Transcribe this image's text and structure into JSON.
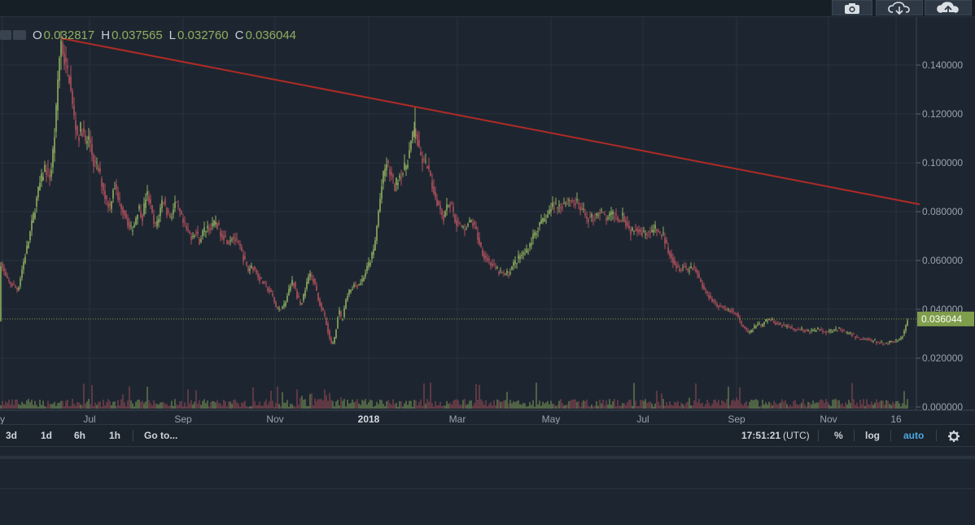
{
  "ohlc": {
    "o_label": "O",
    "o_value": "0.032817",
    "h_label": "H",
    "h_value": "0.037565",
    "l_label": "L",
    "l_value": "0.032760",
    "c_label": "C",
    "c_value": "0.036044"
  },
  "toolbar_top": {
    "camera_icon": "camera-icon",
    "download_icon": "cloud-download-icon",
    "upload_icon": "cloud-upload-icon"
  },
  "bottom_bar": {
    "ranges": [
      "3d",
      "1d",
      "6h",
      "1h"
    ],
    "goto_label": "Go to...",
    "time": "17:51:21",
    "timezone": "(UTC)",
    "percent_label": "%",
    "log_label": "log",
    "auto_label": "auto",
    "settings_icon": "gear-icon"
  },
  "colors": {
    "background": "#1d2630",
    "up": "#8fae5f",
    "down": "#b0505c",
    "trendline": "#b12a26",
    "grid": "#283340",
    "price_tag": "#7f9d4b"
  },
  "chart_data": {
    "type": "candlestick",
    "title": "",
    "y_axis_ticks": [
      "0.140000",
      "0.120000",
      "0.100000",
      "0.080000",
      "0.060000",
      "0.040000",
      "0.020000",
      "0.000000"
    ],
    "x_axis_ticks": [
      {
        "label": "y",
        "x": 3
      },
      {
        "label": "Jul",
        "x": 110
      },
      {
        "label": "Sep",
        "x": 225
      },
      {
        "label": "Nov",
        "x": 338
      },
      {
        "label": "2018",
        "x": 453,
        "bold": true
      },
      {
        "label": "Mar",
        "x": 562
      },
      {
        "label": "May",
        "x": 677
      },
      {
        "label": "Jul",
        "x": 790
      },
      {
        "label": "Sep",
        "x": 905
      },
      {
        "label": "Nov",
        "x": 1018
      },
      {
        "label": "16",
        "x": 1101
      }
    ],
    "last_price": "0.036044",
    "last_price_value": 0.036044,
    "y_range": [
      0.0,
      0.155
    ],
    "trendline": {
      "start": {
        "day": 75,
        "value": 0.151
      },
      "end": {
        "day": 1130,
        "value": 0.083
      }
    },
    "price_path": [
      [
        0,
        0.06
      ],
      [
        8,
        0.052
      ],
      [
        15,
        0.05
      ],
      [
        22,
        0.048
      ],
      [
        28,
        0.058
      ],
      [
        35,
        0.068
      ],
      [
        42,
        0.08
      ],
      [
        48,
        0.09
      ],
      [
        55,
        0.098
      ],
      [
        62,
        0.094
      ],
      [
        68,
        0.115
      ],
      [
        72,
        0.14
      ],
      [
        75,
        0.15
      ],
      [
        80,
        0.14
      ],
      [
        85,
        0.135
      ],
      [
        90,
        0.12
      ],
      [
        96,
        0.11
      ],
      [
        100,
        0.115
      ],
      [
        105,
        0.108
      ],
      [
        110,
        0.11
      ],
      [
        115,
        0.1
      ],
      [
        120,
        0.098
      ],
      [
        125,
        0.092
      ],
      [
        130,
        0.085
      ],
      [
        135,
        0.082
      ],
      [
        140,
        0.092
      ],
      [
        145,
        0.085
      ],
      [
        150,
        0.082
      ],
      [
        155,
        0.078
      ],
      [
        160,
        0.072
      ],
      [
        165,
        0.075
      ],
      [
        170,
        0.082
      ],
      [
        175,
        0.078
      ],
      [
        180,
        0.088
      ],
      [
        185,
        0.082
      ],
      [
        190,
        0.073
      ],
      [
        195,
        0.078
      ],
      [
        200,
        0.086
      ],
      [
        205,
        0.08
      ],
      [
        210,
        0.078
      ],
      [
        215,
        0.083
      ],
      [
        220,
        0.08
      ],
      [
        225,
        0.075
      ],
      [
        230,
        0.072
      ],
      [
        235,
        0.07
      ],
      [
        240,
        0.072
      ],
      [
        245,
        0.068
      ],
      [
        250,
        0.072
      ],
      [
        255,
        0.074
      ],
      [
        260,
        0.073
      ],
      [
        265,
        0.076
      ],
      [
        270,
        0.072
      ],
      [
        275,
        0.07
      ],
      [
        280,
        0.068
      ],
      [
        285,
        0.07
      ],
      [
        290,
        0.068
      ],
      [
        295,
        0.065
      ],
      [
        300,
        0.06
      ],
      [
        305,
        0.056
      ],
      [
        310,
        0.058
      ],
      [
        315,
        0.055
      ],
      [
        320,
        0.052
      ],
      [
        325,
        0.05
      ],
      [
        330,
        0.048
      ],
      [
        335,
        0.045
      ],
      [
        340,
        0.04
      ],
      [
        345,
        0.04
      ],
      [
        350,
        0.042
      ],
      [
        355,
        0.048
      ],
      [
        360,
        0.052
      ],
      [
        365,
        0.045
      ],
      [
        370,
        0.042
      ],
      [
        375,
        0.048
      ],
      [
        380,
        0.054
      ],
      [
        385,
        0.052
      ],
      [
        390,
        0.046
      ],
      [
        395,
        0.04
      ],
      [
        400,
        0.036
      ],
      [
        405,
        0.028
      ],
      [
        408,
        0.025
      ],
      [
        412,
        0.03
      ],
      [
        416,
        0.04
      ],
      [
        420,
        0.035
      ],
      [
        425,
        0.044
      ],
      [
        430,
        0.048
      ],
      [
        435,
        0.05
      ],
      [
        440,
        0.05
      ],
      [
        445,
        0.052
      ],
      [
        450,
        0.056
      ],
      [
        455,
        0.06
      ],
      [
        460,
        0.065
      ],
      [
        465,
        0.08
      ],
      [
        470,
        0.093
      ],
      [
        475,
        0.1
      ],
      [
        480,
        0.095
      ],
      [
        485,
        0.09
      ],
      [
        490,
        0.095
      ],
      [
        495,
        0.096
      ],
      [
        500,
        0.1
      ],
      [
        505,
        0.108
      ],
      [
        510,
        0.114
      ],
      [
        515,
        0.104
      ],
      [
        520,
        0.1
      ],
      [
        525,
        0.098
      ],
      [
        530,
        0.092
      ],
      [
        535,
        0.086
      ],
      [
        540,
        0.082
      ],
      [
        545,
        0.078
      ],
      [
        550,
        0.084
      ],
      [
        555,
        0.082
      ],
      [
        560,
        0.076
      ],
      [
        565,
        0.074
      ],
      [
        570,
        0.073
      ],
      [
        575,
        0.075
      ],
      [
        580,
        0.076
      ],
      [
        585,
        0.072
      ],
      [
        590,
        0.066
      ],
      [
        595,
        0.062
      ],
      [
        600,
        0.06
      ],
      [
        605,
        0.058
      ],
      [
        610,
        0.056
      ],
      [
        615,
        0.055
      ],
      [
        620,
        0.054
      ],
      [
        625,
        0.055
      ],
      [
        630,
        0.058
      ],
      [
        635,
        0.06
      ],
      [
        640,
        0.062
      ],
      [
        645,
        0.063
      ],
      [
        650,
        0.066
      ],
      [
        655,
        0.07
      ],
      [
        660,
        0.073
      ],
      [
        665,
        0.075
      ],
      [
        670,
        0.077
      ],
      [
        675,
        0.08
      ],
      [
        680,
        0.083
      ],
      [
        685,
        0.082
      ],
      [
        690,
        0.083
      ],
      [
        695,
        0.084
      ],
      [
        700,
        0.085
      ],
      [
        705,
        0.084
      ],
      [
        710,
        0.083
      ],
      [
        715,
        0.08
      ],
      [
        720,
        0.078
      ],
      [
        725,
        0.077
      ],
      [
        730,
        0.078
      ],
      [
        735,
        0.08
      ],
      [
        740,
        0.079
      ],
      [
        745,
        0.077
      ],
      [
        750,
        0.078
      ],
      [
        755,
        0.079
      ],
      [
        760,
        0.077
      ],
      [
        765,
        0.079
      ],
      [
        770,
        0.075
      ],
      [
        775,
        0.072
      ],
      [
        780,
        0.074
      ],
      [
        785,
        0.073
      ],
      [
        790,
        0.071
      ],
      [
        795,
        0.072
      ],
      [
        800,
        0.071
      ],
      [
        805,
        0.073
      ],
      [
        810,
        0.071
      ],
      [
        815,
        0.07
      ],
      [
        820,
        0.065
      ],
      [
        825,
        0.062
      ],
      [
        830,
        0.058
      ],
      [
        835,
        0.057
      ],
      [
        840,
        0.058
      ],
      [
        845,
        0.056
      ],
      [
        850,
        0.058
      ],
      [
        855,
        0.056
      ],
      [
        860,
        0.052
      ],
      [
        865,
        0.048
      ],
      [
        870,
        0.046
      ],
      [
        875,
        0.044
      ],
      [
        880,
        0.042
      ],
      [
        885,
        0.041
      ],
      [
        890,
        0.04
      ],
      [
        895,
        0.04
      ],
      [
        900,
        0.039
      ],
      [
        905,
        0.038
      ],
      [
        910,
        0.034
      ],
      [
        915,
        0.032
      ],
      [
        920,
        0.03
      ],
      [
        925,
        0.032
      ],
      [
        930,
        0.034
      ],
      [
        935,
        0.033
      ],
      [
        940,
        0.035
      ],
      [
        945,
        0.036
      ],
      [
        950,
        0.035
      ],
      [
        955,
        0.034
      ],
      [
        960,
        0.034
      ],
      [
        965,
        0.033
      ],
      [
        970,
        0.033
      ],
      [
        975,
        0.032
      ],
      [
        980,
        0.032
      ],
      [
        985,
        0.032
      ],
      [
        990,
        0.031
      ],
      [
        995,
        0.031
      ],
      [
        1000,
        0.031
      ],
      [
        1005,
        0.032
      ],
      [
        1010,
        0.031
      ],
      [
        1015,
        0.031
      ],
      [
        1020,
        0.031
      ],
      [
        1025,
        0.032
      ],
      [
        1030,
        0.032
      ],
      [
        1035,
        0.031
      ],
      [
        1040,
        0.03
      ],
      [
        1045,
        0.03
      ],
      [
        1050,
        0.029
      ],
      [
        1055,
        0.028
      ],
      [
        1060,
        0.028
      ],
      [
        1065,
        0.028
      ],
      [
        1070,
        0.027
      ],
      [
        1075,
        0.027
      ],
      [
        1080,
        0.026
      ],
      [
        1085,
        0.026
      ],
      [
        1090,
        0.026
      ],
      [
        1095,
        0.027
      ],
      [
        1100,
        0.027
      ],
      [
        1105,
        0.028
      ],
      [
        1110,
        0.03
      ],
      [
        1113,
        0.033
      ],
      [
        1116,
        0.036
      ]
    ]
  }
}
